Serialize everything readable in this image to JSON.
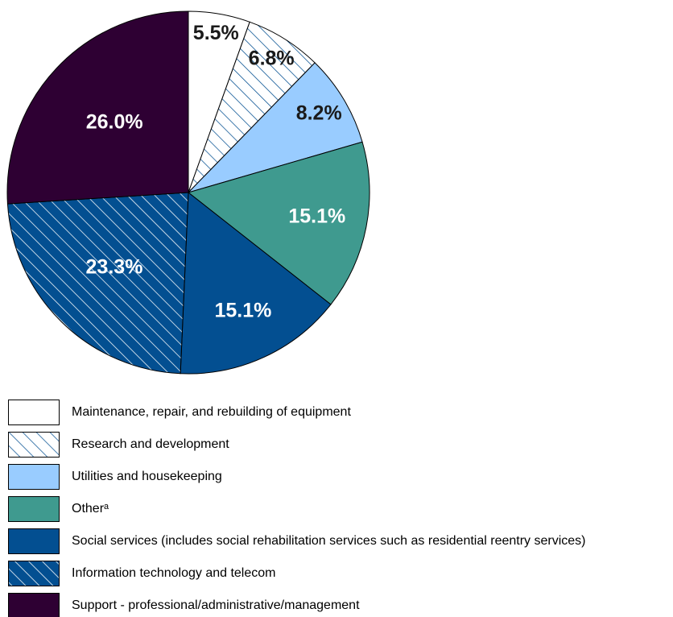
{
  "chart_data": {
    "type": "pie",
    "categories": [
      "Maintenance, repair, and rebuilding of equipment",
      "Research and development",
      "Utilities and housekeeping",
      "Otherᵃ",
      "Social services (includes social rehabilitation services such as residential reentry services)",
      "Information technology and telecom",
      "Support - professional/administrative/management"
    ],
    "values": [
      5.5,
      6.8,
      8.2,
      15.1,
      15.1,
      23.3,
      26.0
    ],
    "value_labels": [
      "5.5%",
      "6.8%",
      "8.2%",
      "15.1%",
      "15.1%",
      "23.3%",
      "26.0%"
    ],
    "colors": [
      "#ffffff",
      "#ffffff",
      "#99ccff",
      "#3f9a8f",
      "#034f91",
      "#034f91",
      "#2e0033"
    ],
    "hatch": [
      false,
      true,
      false,
      false,
      false,
      true,
      false
    ]
  }
}
